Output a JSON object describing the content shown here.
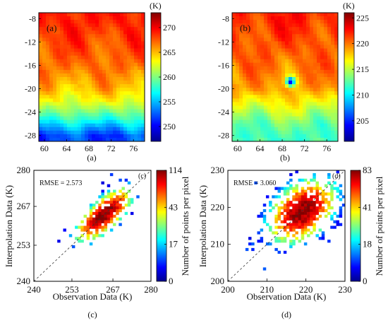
{
  "colors": {
    "jet": [
      "#00008f",
      "#0000ff",
      "#0080ff",
      "#00ffff",
      "#80ff80",
      "#ffff00",
      "#ff8000",
      "#ff0000",
      "#800000"
    ]
  },
  "chart_data": [
    {
      "id": "a",
      "type": "heatmap",
      "panel_label": "(a)",
      "caption": "(a)",
      "colorbar_unit": "(K)",
      "xticks": [
        "60",
        "64",
        "68",
        "72",
        "76"
      ],
      "yticks": [
        "-8",
        "-12",
        "-16",
        "-20",
        "-24",
        "-28"
      ],
      "xlim": [
        59,
        78
      ],
      "ylim": [
        -29,
        -7
      ],
      "colorbar_ticks": [
        "250",
        "255",
        "260",
        "265",
        "270"
      ],
      "zlim": [
        247,
        273
      ],
      "field": {
        "description_rows": "mean temperature per latitude band, north to south",
        "rows": [
          {
            "lat": -8,
            "value": 269
          },
          {
            "lat": -12,
            "value": 268
          },
          {
            "lat": -16,
            "value": 267
          },
          {
            "lat": -20,
            "value": 265
          },
          {
            "lat": -22,
            "value": 263
          },
          {
            "lat": -24,
            "value": 260
          },
          {
            "lat": -26,
            "value": 256
          },
          {
            "lat": -28,
            "value": 252
          }
        ]
      }
    },
    {
      "id": "b",
      "type": "heatmap",
      "panel_label": "(b)",
      "caption": "(b)",
      "colorbar_unit": "(K)",
      "xticks": [
        "60",
        "64",
        "68",
        "72",
        "76"
      ],
      "yticks": [
        "-8",
        "-12",
        "-16",
        "-20",
        "-24",
        "-28"
      ],
      "xlim": [
        59,
        78
      ],
      "ylim": [
        -29,
        -7
      ],
      "colorbar_ticks": [
        "205",
        "210",
        "215",
        "220",
        "225"
      ],
      "zlim": [
        201,
        226
      ],
      "field": {
        "rows": [
          {
            "lat": -8,
            "value": 222
          },
          {
            "lat": -12,
            "value": 221
          },
          {
            "lat": -16,
            "value": 220
          },
          {
            "lat": -20,
            "value": 219
          },
          {
            "lat": -22,
            "value": 217
          },
          {
            "lat": -24,
            "value": 215
          },
          {
            "lat": -26,
            "value": 213
          },
          {
            "lat": -28,
            "value": 212
          }
        ],
        "cold_spot": {
          "lon": 69.5,
          "lat": -18.8,
          "value": 204
        }
      }
    },
    {
      "id": "c",
      "type": "heatmap",
      "panel_label": "(c)",
      "caption": "(c)",
      "annotation": "RMSE = 2.573",
      "xlabel": "Observation Data (K)",
      "ylabel": "Interpolation Data (K)",
      "colorbar_label": "Number of points per pixel",
      "xticks": [
        "240",
        "253",
        "267",
        "280"
      ],
      "yticks": [
        "240",
        "253",
        "267",
        "280"
      ],
      "xlim": [
        240,
        280
      ],
      "ylim": [
        240,
        280
      ],
      "colorbar_ticks": [
        "0",
        "17",
        "43",
        "114"
      ],
      "zlim": [
        0,
        114
      ],
      "density": {
        "center": [
          264,
          264
        ],
        "spread_major": 5.5,
        "spread_minor": 2.2,
        "peak": 114
      }
    },
    {
      "id": "d",
      "type": "heatmap",
      "panel_label": "(d)",
      "caption": "(d)",
      "annotation": "RMSE = 3.060",
      "xlabel": "Observation Data (K)",
      "ylabel": "Interpolation Data (K)",
      "colorbar_label": "Number of points per pixel",
      "xticks": [
        "200",
        "210",
        "220",
        "230"
      ],
      "yticks": [
        "200",
        "210",
        "220",
        "230"
      ],
      "xlim": [
        200,
        230
      ],
      "ylim": [
        200,
        230
      ],
      "colorbar_ticks": [
        "0",
        "18",
        "41",
        "83"
      ],
      "zlim": [
        0,
        83
      ],
      "density": {
        "center": [
          219,
          219
        ],
        "spread_major": 4.5,
        "spread_minor": 3.0,
        "peak": 83
      }
    }
  ]
}
